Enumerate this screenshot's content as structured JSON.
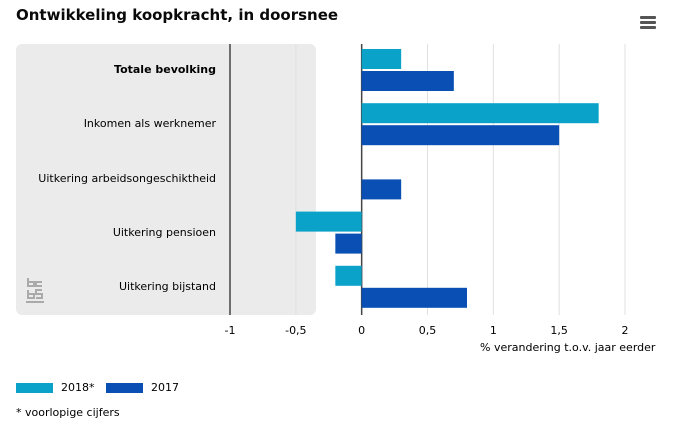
{
  "title": "Ontwikkeling koopkracht, in doorsnee",
  "icons": {
    "menu": "hamburger-menu-icon",
    "logo": "cbs-logo-icon"
  },
  "colors": {
    "2018*": "#0aa2c9",
    "2017": "#0a50b4",
    "panel": "#ebebeb",
    "grid": "#e0e0e0",
    "axis": "#444444"
  },
  "legend": [
    {
      "label": "2018*"
    },
    {
      "label": "2017"
    }
  ],
  "footnote": "* voorlopige cijfers",
  "chart_data": {
    "type": "bar",
    "orientation": "horizontal",
    "categories": [
      "Totale bevolking",
      "Inkomen als werknemer",
      "Uitkering arbeidsongeschiktheid",
      "Uitkering pensioen",
      "Uitkering bijstand"
    ],
    "bold_categories": [
      "Totale bevolking"
    ],
    "series": [
      {
        "name": "2018*",
        "values": [
          0.3,
          1.8,
          null,
          -0.5,
          -0.2
        ]
      },
      {
        "name": "2017",
        "values": [
          0.7,
          1.5,
          0.3,
          -0.2,
          0.8
        ]
      }
    ],
    "xlim": [
      -1,
      2
    ],
    "xticks": [
      "-1",
      "-0,5",
      "0",
      "0,5",
      "1",
      "1,5",
      "2"
    ],
    "xlabel": "% verandering t.o.v. jaar eerder",
    "ylabel": "",
    "grid": true,
    "legend_position": "bottom-left"
  }
}
